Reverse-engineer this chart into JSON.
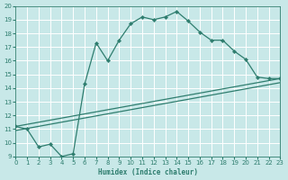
{
  "xlabel": "Humidex (Indice chaleur)",
  "bg_color": "#c8e8e8",
  "grid_color": "#ffffff",
  "line_color": "#2e7d6e",
  "xlim": [
    0,
    23
  ],
  "ylim": [
    9,
    20
  ],
  "xticks": [
    0,
    1,
    2,
    3,
    4,
    5,
    6,
    7,
    8,
    9,
    10,
    11,
    12,
    13,
    14,
    15,
    16,
    17,
    18,
    19,
    20,
    21,
    22,
    23
  ],
  "yticks": [
    9,
    10,
    11,
    12,
    13,
    14,
    15,
    16,
    17,
    18,
    19,
    20
  ],
  "line1_x": [
    0,
    1,
    2,
    3,
    4,
    5,
    6,
    7,
    8,
    9,
    10,
    11,
    12,
    13,
    14,
    15,
    16,
    17,
    18,
    19,
    20,
    21,
    22,
    23
  ],
  "line1_y": [
    11.2,
    11.0,
    9.7,
    9.9,
    9.0,
    9.2,
    14.3,
    17.3,
    16.0,
    17.5,
    18.7,
    19.2,
    19.0,
    19.2,
    19.6,
    18.9,
    18.1,
    17.5,
    17.5,
    16.7,
    16.1,
    14.8,
    14.7,
    14.7
  ],
  "line2_x": [
    0,
    23
  ],
  "line2_y": [
    11.2,
    14.7
  ],
  "line3_x": [
    0,
    23
  ],
  "line3_y": [
    10.9,
    14.4
  ]
}
